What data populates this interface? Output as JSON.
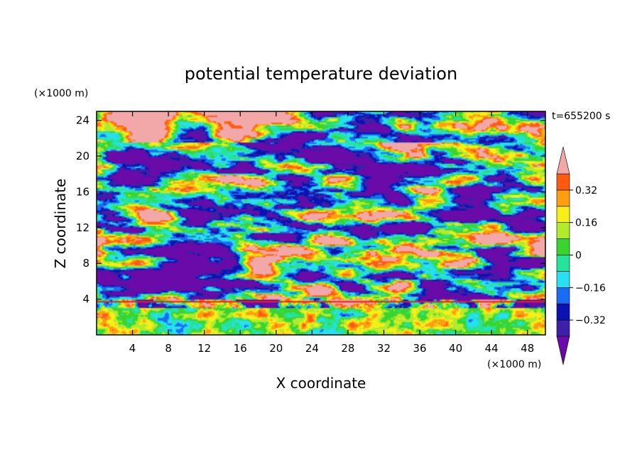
{
  "chart_data": {
    "type": "heatmap",
    "title": "potential temperature deviation",
    "xlabel": "X coordinate",
    "ylabel": "Z coordinate",
    "x_unit_label": "(×1000 m)",
    "z_unit_label": "(×1000 m)",
    "time_label": "t=655200 s",
    "xlim": [
      0,
      50
    ],
    "ylim": [
      0,
      25
    ],
    "x_ticks": [
      4,
      8,
      12,
      16,
      20,
      24,
      28,
      32,
      36,
      40,
      44,
      48
    ],
    "y_ticks": [
      4,
      8,
      12,
      16,
      20,
      24
    ],
    "colorbar": {
      "levels": [
        -0.4,
        -0.32,
        -0.24,
        -0.16,
        -0.08,
        0,
        0.08,
        0.16,
        0.24,
        0.32,
        0.4
      ],
      "labels": [
        "0.32",
        "0.16",
        "0",
        "−0.16",
        "−0.32"
      ],
      "label_values": [
        0.32,
        0.16,
        0,
        -0.16,
        -0.32
      ],
      "colors": [
        "#6a0aa8",
        "#3d1fa8",
        "#0b12b0",
        "#1a6cf2",
        "#27e0f2",
        "#26e39a",
        "#39d52e",
        "#b2ea2c",
        "#f6f018",
        "#ff9e10",
        "#ff5a10",
        "#e8221a",
        "#f2a8a8"
      ],
      "extend": "both"
    }
  }
}
